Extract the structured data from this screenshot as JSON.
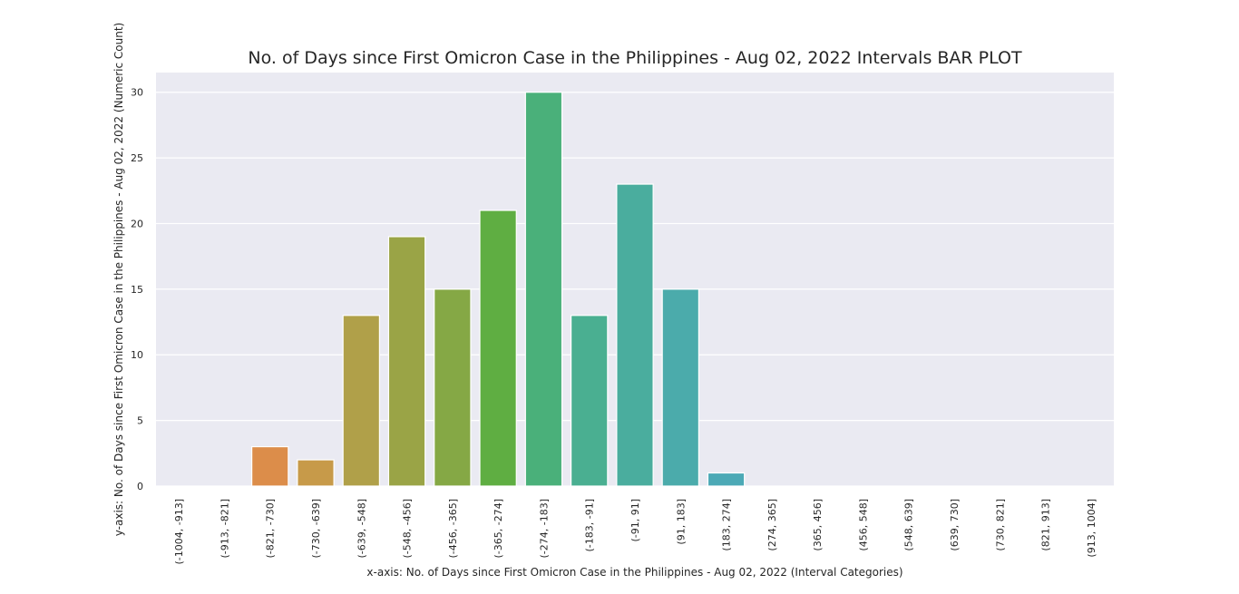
{
  "chart_data": {
    "type": "bar",
    "title": "No. of Days since First Omicron Case in the Philippines - Aug 02, 2022 Intervals BAR PLOT",
    "xlabel": "x-axis: No. of Days since First Omicron Case in the Philippines - Aug 02, 2022 (Interval Categories)",
    "ylabel": "y-axis: No. of Days since First Omicron Case in the Philippines - Aug 02, 2022 (Numeric Count)",
    "categories": [
      "(-1004, -913]",
      "(-913, -821]",
      "(-821, -730]",
      "(-730, -639]",
      "(-639, -548]",
      "(-548, -456]",
      "(-456, -365]",
      "(-365, -274]",
      "(-274, -183]",
      "(-183, -91]",
      "(-91, 91]",
      "(91, 183]",
      "(183, 274]",
      "(274, 365]",
      "(365, 456]",
      "(456, 548]",
      "(548, 639]",
      "(639, 730]",
      "(730, 821]",
      "(821, 913]",
      "(913, 1004]"
    ],
    "values": [
      0,
      0,
      3,
      2,
      13,
      19,
      15,
      21,
      30,
      13,
      23,
      15,
      1,
      0,
      0,
      0,
      0,
      0,
      0,
      0,
      0
    ],
    "colors": [
      "#f77189",
      "#f47a4b",
      "#dc8d4a",
      "#c79a49",
      "#b0a049",
      "#9aa446",
      "#85a845",
      "#5fae42",
      "#4ab07a",
      "#4aaf91",
      "#4aad9e",
      "#4babab",
      "#4ca9b6",
      "#4fa6c3",
      "#54a1d3",
      "#6b98e6",
      "#8e8cef",
      "#ae80ef",
      "#c973ea",
      "#e267de",
      "#f565c6"
    ],
    "yticks": [
      0,
      5,
      10,
      15,
      20,
      25,
      30
    ],
    "ylim": [
      0,
      31.5
    ],
    "grid": true,
    "background": "#eaeaf2"
  }
}
